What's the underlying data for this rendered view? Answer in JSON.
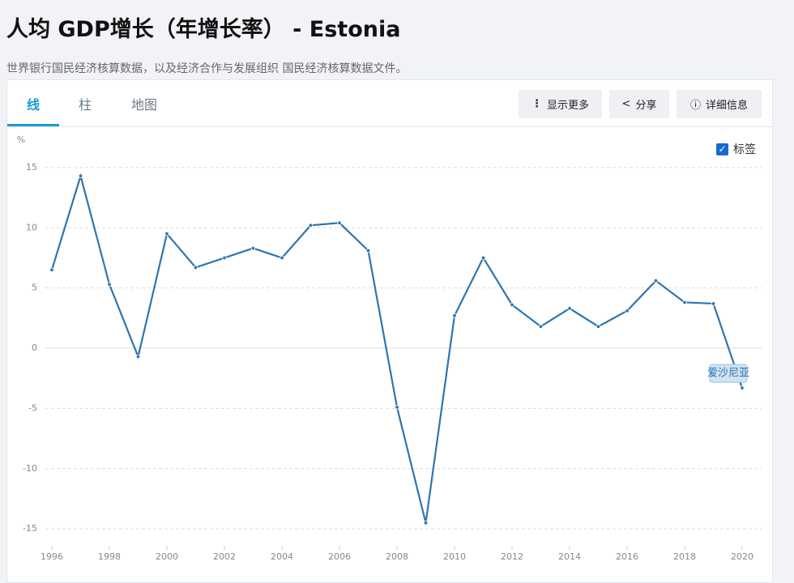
{
  "header": {
    "title": "人均 GDP增长（年增长率） - Estonia",
    "subtitle": "世界银行国民经济核算数据，以及经济合作与发展组织 国民经济核算数据文件。"
  },
  "tabs": [
    "线",
    "柱",
    "地图"
  ],
  "buttons": [
    "显示更多",
    "分享",
    "详细信息"
  ],
  "label_toggle": "标签",
  "chart_data": {
    "type": "line",
    "y_label": "%",
    "x": [
      1996,
      1997,
      1998,
      1999,
      2000,
      2001,
      2002,
      2003,
      2004,
      2005,
      2006,
      2007,
      2008,
      2009,
      2010,
      2011,
      2012,
      2013,
      2014,
      2015,
      2016,
      2017,
      2018,
      2019,
      2020
    ],
    "series": [
      {
        "name": "爱沙尼亚",
        "color": "#2e75b0",
        "values": [
          6.5,
          14.3,
          5.3,
          -0.7,
          9.5,
          6.7,
          7.5,
          8.3,
          7.5,
          10.2,
          10.4,
          8.1,
          -4.9,
          -14.5,
          2.7,
          7.5,
          3.6,
          1.8,
          3.3,
          1.8,
          3.1,
          5.6,
          3.8,
          3.7,
          -3.3
        ]
      }
    ],
    "xlim": [
      1996,
      2020
    ],
    "xticks": [
      1996,
      1998,
      2000,
      2002,
      2004,
      2006,
      2008,
      2010,
      2012,
      2014,
      2016,
      2018,
      2020
    ],
    "ylim": [
      -16,
      16
    ],
    "yticks": [
      -15,
      -10,
      -5,
      0,
      5,
      10,
      15
    ],
    "grid": true
  }
}
